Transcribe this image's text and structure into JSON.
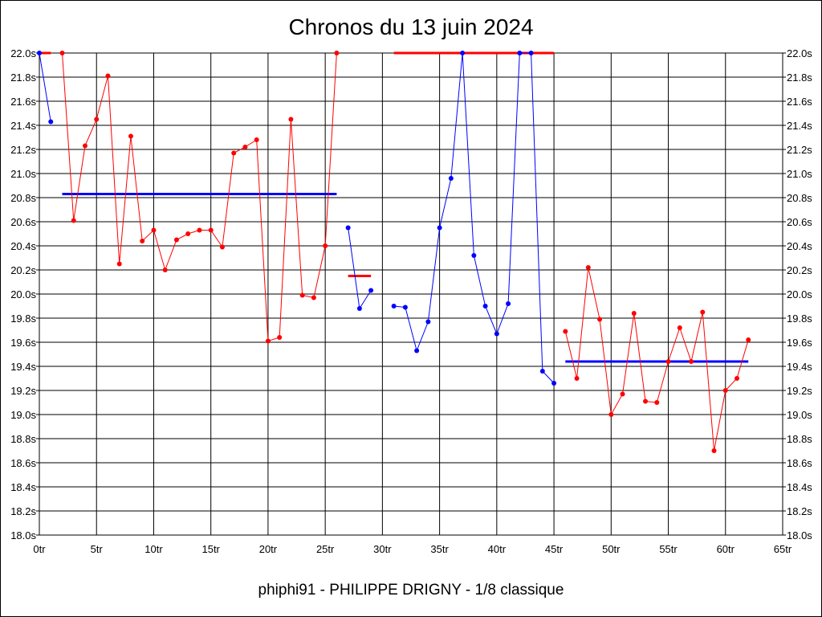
{
  "chart_data": {
    "type": "line",
    "title": "Chronos du 13 juin 2024",
    "subtitle": "phiphi91 - PHILIPPE DRIGNY - 1/8 classique",
    "xlabel": "",
    "ylabel": "",
    "xlim": [
      0,
      65
    ],
    "ylim": [
      18.0,
      22.0
    ],
    "x_ticks": [
      "0tr",
      "5tr",
      "10tr",
      "15tr",
      "20tr",
      "25tr",
      "30tr",
      "35tr",
      "40tr",
      "45tr",
      "50tr",
      "55tr",
      "60tr",
      "65tr"
    ],
    "y_ticks": [
      "18.0s",
      "18.2s",
      "18.4s",
      "18.6s",
      "18.8s",
      "19.0s",
      "19.2s",
      "19.4s",
      "19.6s",
      "19.8s",
      "20.0s",
      "20.2s",
      "20.4s",
      "20.6s",
      "20.8s",
      "21.0s",
      "21.2s",
      "21.4s",
      "21.6s",
      "21.8s",
      "22.0s"
    ],
    "grid": true,
    "colors": {
      "red": "#ff0000",
      "blue": "#0000ff"
    },
    "segments": [
      {
        "color": "#0000ff",
        "points": [
          [
            0,
            22.0
          ],
          [
            1,
            21.43
          ]
        ]
      },
      {
        "color": "#ff0000",
        "points": [
          [
            2,
            22.0
          ],
          [
            3,
            20.61
          ],
          [
            4,
            21.23
          ],
          [
            5,
            21.45
          ],
          [
            6,
            21.81
          ],
          [
            7,
            20.25
          ],
          [
            8,
            21.31
          ],
          [
            9,
            20.44
          ],
          [
            10,
            20.53
          ],
          [
            11,
            20.2
          ],
          [
            12,
            20.45
          ],
          [
            13,
            20.5
          ],
          [
            14,
            20.53
          ],
          [
            15,
            20.53
          ],
          [
            16,
            20.39
          ],
          [
            17,
            21.17
          ],
          [
            18,
            21.22
          ],
          [
            19,
            21.28
          ],
          [
            20,
            19.61
          ],
          [
            21,
            19.64
          ],
          [
            22,
            21.45
          ],
          [
            23,
            19.99
          ],
          [
            24,
            19.97
          ],
          [
            25,
            20.4
          ],
          [
            26,
            22.0
          ]
        ]
      },
      {
        "color": "#0000ff",
        "points": [
          [
            27,
            20.55
          ],
          [
            28,
            19.88
          ],
          [
            29,
            20.03
          ]
        ]
      },
      {
        "color": "#0000ff",
        "points": [
          [
            31,
            19.9
          ],
          [
            32,
            19.89
          ],
          [
            33,
            19.53
          ],
          [
            34,
            19.77
          ],
          [
            35,
            20.55
          ],
          [
            36,
            20.96
          ],
          [
            37,
            22.0
          ],
          [
            38,
            20.32
          ],
          [
            39,
            19.9
          ],
          [
            40,
            19.67
          ],
          [
            41,
            19.92
          ],
          [
            42,
            22.0
          ],
          [
            43,
            22.0
          ],
          [
            44,
            19.36
          ],
          [
            45,
            19.26
          ]
        ]
      },
      {
        "color": "#ff0000",
        "points": [
          [
            46,
            19.69
          ],
          [
            47,
            19.3
          ],
          [
            48,
            20.22
          ],
          [
            49,
            19.79
          ],
          [
            50,
            19.0
          ],
          [
            51,
            19.17
          ],
          [
            52,
            19.84
          ],
          [
            53,
            19.11
          ],
          [
            54,
            19.1
          ],
          [
            55,
            19.44
          ],
          [
            56,
            19.72
          ],
          [
            57,
            19.44
          ],
          [
            58,
            19.85
          ],
          [
            59,
            18.7
          ],
          [
            60,
            19.2
          ],
          [
            61,
            19.3
          ],
          [
            62,
            19.62
          ]
        ]
      }
    ],
    "averages": [
      {
        "color": "#ff0000",
        "from": 0,
        "to": 1,
        "value": 22.0
      },
      {
        "color": "#0000ff",
        "from": 2,
        "to": 26,
        "value": 20.83
      },
      {
        "color": "#ff0000",
        "from": 27,
        "to": 29,
        "value": 20.15
      },
      {
        "color": "#ff0000",
        "from": 31,
        "to": 45,
        "value": 22.0
      },
      {
        "color": "#0000ff",
        "from": 46,
        "to": 62,
        "value": 19.44
      }
    ]
  }
}
